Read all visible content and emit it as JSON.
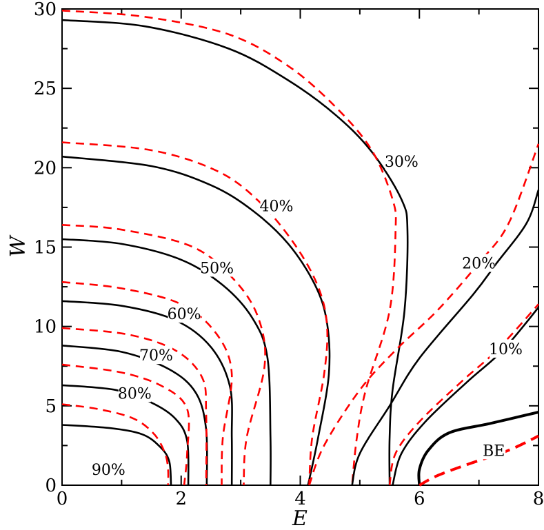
{
  "chart_data": {
    "type": "line",
    "xlabel": "E",
    "ylabel": "W",
    "xlim": [
      0,
      8
    ],
    "ylim": [
      0,
      30
    ],
    "x_ticks": [
      "0",
      "2",
      "4",
      "6",
      "8"
    ],
    "y_ticks": [
      "0",
      "5",
      "10",
      "15",
      "20",
      "25",
      "30"
    ],
    "grid": false,
    "line_colors": {
      "solid": "#000000",
      "dashed": "#ff0000"
    },
    "series": [
      {
        "style": "solid",
        "level": "90%",
        "points": [
          [
            0,
            3.8
          ],
          [
            0.8,
            3.6
          ],
          [
            1.35,
            3.2
          ],
          [
            1.65,
            2.4
          ],
          [
            1.8,
            1.5
          ],
          [
            1.83,
            0
          ]
        ]
      },
      {
        "style": "dashed",
        "level": "90%",
        "points": [
          [
            0,
            5.1
          ],
          [
            0.6,
            4.8
          ],
          [
            1.2,
            4.2
          ],
          [
            1.55,
            3.2
          ],
          [
            1.73,
            2.0
          ],
          [
            1.78,
            1.0
          ],
          [
            1.78,
            0
          ]
        ]
      },
      {
        "style": "solid",
        "level": "80%",
        "points": [
          [
            0,
            6.3
          ],
          [
            0.9,
            6.0
          ],
          [
            1.5,
            5.2
          ],
          [
            1.9,
            4.2
          ],
          [
            2.1,
            2.8
          ],
          [
            2.12,
            0
          ]
        ]
      },
      {
        "style": "dashed",
        "level": "80%",
        "points": [
          [
            0,
            7.6
          ],
          [
            1.0,
            7.1
          ],
          [
            1.7,
            6.2
          ],
          [
            2.1,
            4.8
          ],
          [
            2.1,
            2.0
          ],
          [
            2.05,
            0
          ]
        ]
      },
      {
        "style": "solid",
        "level": "70%",
        "points": [
          [
            0,
            8.8
          ],
          [
            1.0,
            8.4
          ],
          [
            1.8,
            7.3
          ],
          [
            2.25,
            5.8
          ],
          [
            2.42,
            3.5
          ],
          [
            2.43,
            0
          ]
        ]
      },
      {
        "style": "dashed",
        "level": "70%",
        "points": [
          [
            0,
            9.9
          ],
          [
            1.1,
            9.5
          ],
          [
            1.9,
            8.5
          ],
          [
            2.35,
            6.8
          ],
          [
            2.42,
            4.5
          ],
          [
            2.42,
            0
          ]
        ]
      },
      {
        "style": "solid",
        "level": "60%",
        "points": [
          [
            0,
            11.6
          ],
          [
            1.0,
            11.3
          ],
          [
            1.9,
            10.4
          ],
          [
            2.5,
            8.7
          ],
          [
            2.82,
            6.2
          ],
          [
            2.85,
            3.0
          ],
          [
            2.85,
            0
          ]
        ]
      },
      {
        "style": "dashed",
        "level": "60%",
        "points": [
          [
            0,
            12.8
          ],
          [
            1.0,
            12.4
          ],
          [
            2.0,
            11.4
          ],
          [
            2.6,
            9.5
          ],
          [
            2.85,
            7.0
          ],
          [
            2.7,
            3.0
          ],
          [
            2.68,
            0
          ]
        ]
      },
      {
        "style": "solid",
        "level": "50%",
        "points": [
          [
            0,
            15.5
          ],
          [
            1.0,
            15.2
          ],
          [
            2.0,
            14.2
          ],
          [
            2.7,
            12.6
          ],
          [
            3.2,
            10.5
          ],
          [
            3.45,
            8.0
          ],
          [
            3.5,
            3.0
          ],
          [
            3.5,
            0
          ]
        ]
      },
      {
        "style": "dashed",
        "level": "50%",
        "points": [
          [
            0,
            16.4
          ],
          [
            1.0,
            16.1
          ],
          [
            2.2,
            15.0
          ],
          [
            2.9,
            12.9
          ],
          [
            3.3,
            10.5
          ],
          [
            3.4,
            7.5
          ],
          [
            3.1,
            3.0
          ],
          [
            3.05,
            0
          ]
        ]
      },
      {
        "style": "solid",
        "level": "40%",
        "points": [
          [
            0,
            20.7
          ],
          [
            1.5,
            20.1
          ],
          [
            2.5,
            18.9
          ],
          [
            3.2,
            17.3
          ],
          [
            3.8,
            15.2
          ],
          [
            4.25,
            12.6
          ],
          [
            4.45,
            10.2
          ],
          [
            4.48,
            7.0
          ],
          [
            4.3,
            3.0
          ],
          [
            4.13,
            0
          ]
        ]
      },
      {
        "style": "dashed",
        "level": "40%",
        "points": [
          [
            0,
            21.6
          ],
          [
            1.5,
            21.1
          ],
          [
            2.6,
            19.8
          ],
          [
            3.3,
            17.9
          ],
          [
            3.9,
            15.2
          ],
          [
            4.3,
            12.5
          ],
          [
            4.45,
            10.0
          ],
          [
            4.4,
            7.0
          ],
          [
            4.2,
            3.0
          ],
          [
            4.15,
            0
          ]
        ]
      },
      {
        "style": "solid",
        "level": "30%",
        "points": [
          [
            0,
            29.3
          ],
          [
            1.4,
            28.9
          ],
          [
            2.8,
            27.5
          ],
          [
            3.8,
            25.5
          ],
          [
            4.6,
            23.3
          ],
          [
            5.2,
            21.0
          ],
          [
            5.7,
            18.0
          ],
          [
            5.8,
            16.0
          ],
          [
            5.75,
            11.0
          ],
          [
            5.55,
            6.0
          ],
          [
            5.5,
            3.0
          ],
          [
            5.5,
            0
          ]
        ]
      },
      {
        "style": "dashed",
        "level": "30%",
        "points": [
          [
            0,
            29.9
          ],
          [
            1.4,
            29.5
          ],
          [
            2.8,
            28.4
          ],
          [
            3.8,
            26.4
          ],
          [
            4.6,
            23.8
          ],
          [
            5.2,
            21.1
          ],
          [
            5.55,
            18.0
          ],
          [
            5.6,
            16.0
          ],
          [
            5.5,
            11.0
          ],
          [
            5.1,
            6.0
          ],
          [
            4.95,
            3.0
          ],
          [
            4.87,
            0
          ]
        ]
      },
      {
        "style": "solid",
        "level": "20%",
        "points": [
          [
            4.87,
            0
          ],
          [
            5.0,
            2.0
          ],
          [
            5.5,
            5.0
          ],
          [
            6.0,
            8.0
          ],
          [
            6.9,
            12.0
          ],
          [
            7.3,
            14.0
          ],
          [
            7.8,
            16.5
          ],
          [
            8.0,
            18.6
          ]
        ]
      },
      {
        "style": "dashed",
        "level": "20%",
        "points": [
          [
            4.15,
            0
          ],
          [
            4.4,
            2.5
          ],
          [
            5.0,
            6.0
          ],
          [
            5.6,
            8.5
          ],
          [
            6.3,
            11.0
          ],
          [
            7.0,
            14.0
          ],
          [
            7.5,
            16.5
          ],
          [
            8.0,
            21.5
          ]
        ]
      },
      {
        "style": "solid",
        "level": "10%",
        "points": [
          [
            5.55,
            0
          ],
          [
            5.7,
            2.0
          ],
          [
            6.1,
            4.0
          ],
          [
            6.8,
            6.5
          ],
          [
            7.4,
            8.5
          ],
          [
            8.0,
            11.2
          ]
        ]
      },
      {
        "style": "dashed",
        "level": "10%",
        "points": [
          [
            5.5,
            0
          ],
          [
            5.6,
            2.0
          ],
          [
            6.0,
            4.0
          ],
          [
            6.7,
            6.5
          ],
          [
            7.3,
            8.5
          ],
          [
            8.0,
            11.4
          ]
        ]
      },
      {
        "style": "solid-thick",
        "level": "BE",
        "points": [
          [
            6.0,
            0
          ],
          [
            6.0,
            1.0
          ],
          [
            6.15,
            2.2
          ],
          [
            6.5,
            3.3
          ],
          [
            7.2,
            3.9
          ],
          [
            8.0,
            4.6
          ]
        ]
      },
      {
        "style": "dashed-thick",
        "level": "BE",
        "points": [
          [
            6.0,
            0
          ],
          [
            6.3,
            0.6
          ],
          [
            6.8,
            1.3
          ],
          [
            7.5,
            2.2
          ],
          [
            8.0,
            3.1
          ]
        ]
      }
    ],
    "annotations": [
      {
        "text": "90%",
        "x": 0.78,
        "y": 1.0
      },
      {
        "text": "80%",
        "x": 1.22,
        "y": 5.8
      },
      {
        "text": "70%",
        "x": 1.58,
        "y": 8.2
      },
      {
        "text": "60%",
        "x": 2.05,
        "y": 10.8
      },
      {
        "text": "50%",
        "x": 2.6,
        "y": 13.7
      },
      {
        "text": "40%",
        "x": 3.6,
        "y": 17.6
      },
      {
        "text": "30%",
        "x": 5.7,
        "y": 20.4
      },
      {
        "text": "20%",
        "x": 7.0,
        "y": 14.0
      },
      {
        "text": "10%",
        "x": 7.45,
        "y": 8.6
      },
      {
        "text": "BE",
        "x": 7.25,
        "y": 2.2
      }
    ]
  }
}
